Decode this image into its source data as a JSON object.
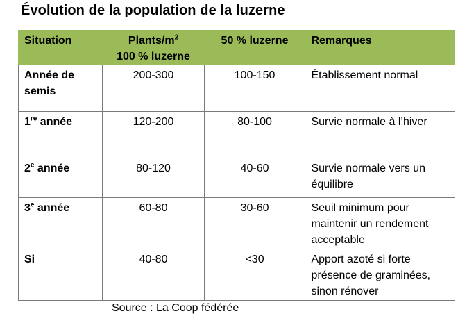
{
  "title": "Évolution de la population de la luzerne",
  "table": {
    "headers": {
      "situation": "Situation",
      "plants_line1": "Plants/m",
      "plants_sup": "2",
      "plants_line2": "100 % luzerne",
      "fifty": "50 % luzerne",
      "remarks": "Remarques"
    },
    "rows": [
      {
        "situation": "Année de semis",
        "situation_sup": "",
        "situation_suffix": "",
        "plants": "200-300",
        "fifty": "100-150",
        "remarks": "Établissement  normal"
      },
      {
        "situation": "1",
        "situation_sup": "re",
        "situation_suffix": " année",
        "plants": "120-200",
        "fifty": "80-100",
        "remarks": "Survie normale à l’hiver"
      },
      {
        "situation": "2",
        "situation_sup": "e",
        "situation_suffix": " année",
        "plants": "80-120",
        "fifty": "40-60",
        "remarks": "Survie normale vers un équilibre"
      },
      {
        "situation": "3",
        "situation_sup": "e",
        "situation_suffix": " année",
        "plants": "60-80",
        "fifty": "30-60",
        "remarks": "Seuil minimum pour maintenir un rendement acceptable"
      },
      {
        "situation": "Si",
        "situation_sup": "",
        "situation_suffix": "",
        "plants": "40-80",
        "fifty": "<30",
        "remarks": "Apport azoté si forte présence de graminées, sinon rénover"
      }
    ]
  },
  "source": "Source : La Coop fédérée",
  "colors": {
    "header_bg": "#9bbb59",
    "border": "#7a7a7a"
  }
}
